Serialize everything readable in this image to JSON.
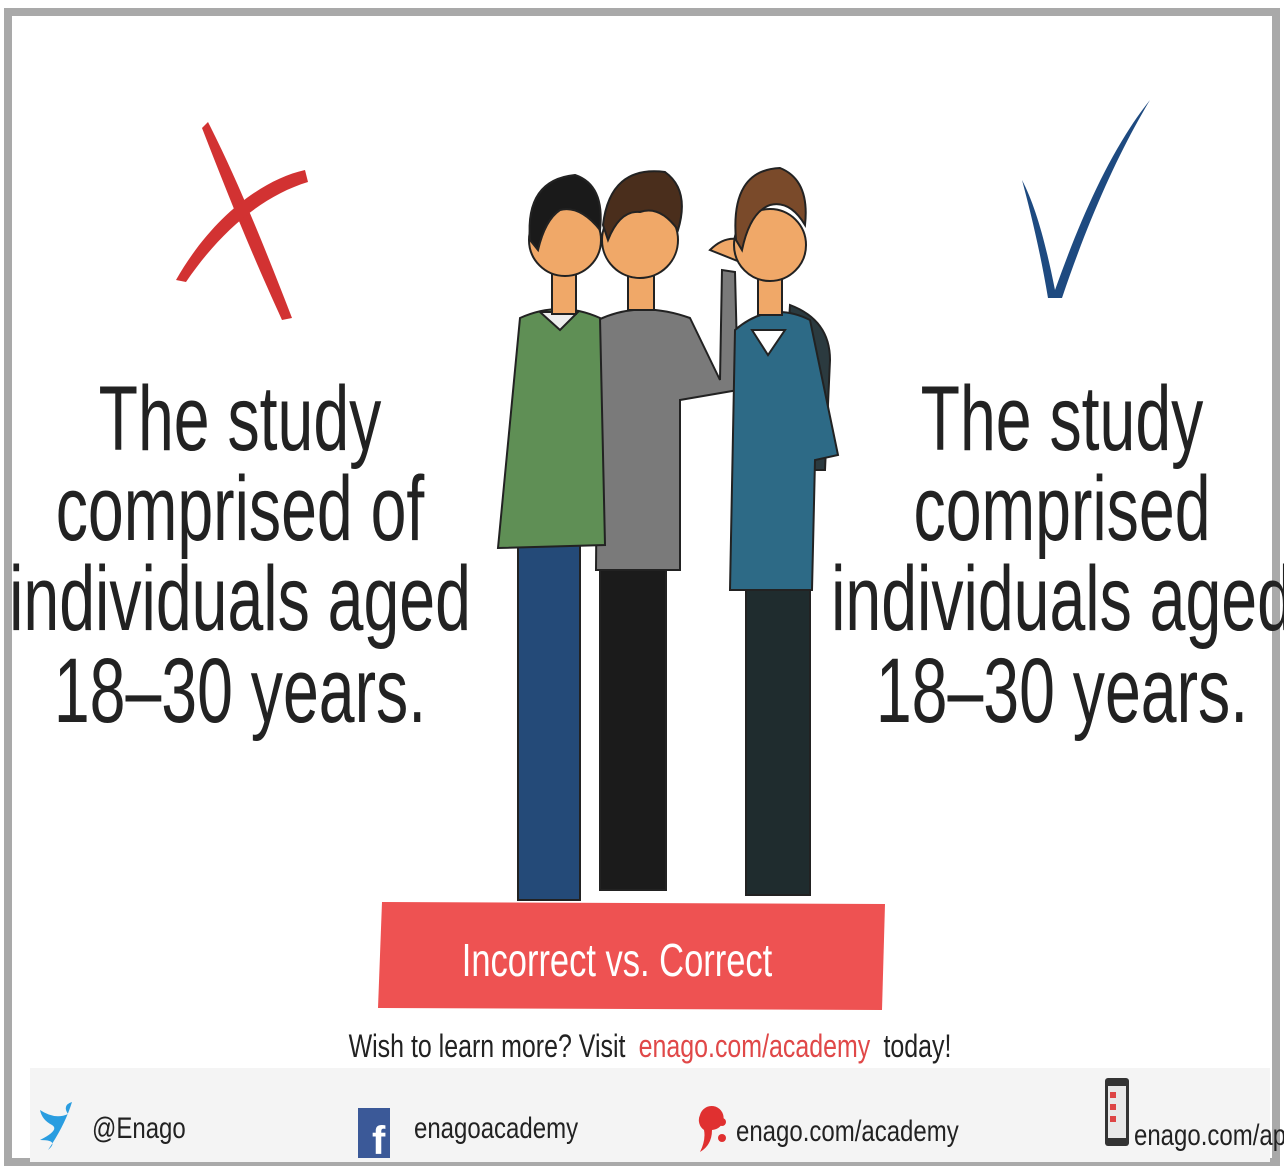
{
  "incorrect": {
    "lines": [
      "The study",
      "comprised of",
      "individuals aged",
      "18–30 years."
    ]
  },
  "correct": {
    "lines": [
      "The study",
      "comprised",
      "individuals aged",
      "18–30 years."
    ]
  },
  "banner": "Incorrect vs. Correct",
  "visit": {
    "before": "Wish to learn more? Visit",
    "link": "enago.com/academy",
    "after": "today!"
  },
  "footer": {
    "twitter": "@Enago",
    "facebook": "enagoacademy",
    "website": "enago.com/academy",
    "app": "enago.com/app"
  }
}
